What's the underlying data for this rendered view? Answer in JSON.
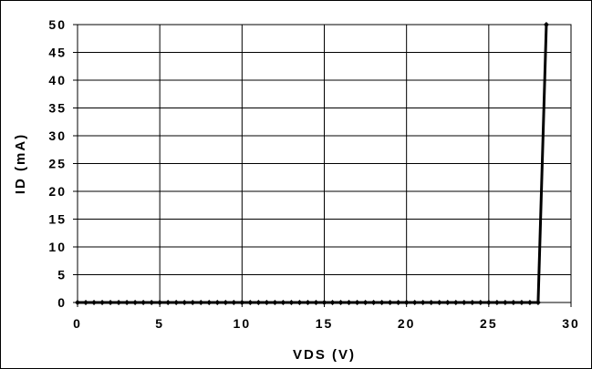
{
  "chart_data": {
    "type": "line",
    "title": "",
    "xlabel": "VDS (V)",
    "ylabel": "ID (mA)",
    "xlim": [
      0,
      30
    ],
    "ylim": [
      0,
      50
    ],
    "xticks": [
      0,
      5,
      10,
      15,
      20,
      25,
      30
    ],
    "yticks": [
      0,
      5,
      10,
      15,
      20,
      25,
      30,
      35,
      40,
      45,
      50
    ],
    "grid": true,
    "legend": "none",
    "line_color": "#000000",
    "marker": "diamond",
    "series": [
      {
        "x": [
          0,
          0.5,
          1,
          1.5,
          2,
          2.5,
          3,
          3.5,
          4,
          4.5,
          5,
          5.5,
          6,
          6.5,
          7,
          7.5,
          8,
          8.5,
          9,
          9.5,
          10,
          10.5,
          11,
          11.5,
          12,
          12.5,
          13,
          13.5,
          14,
          14.5,
          15,
          15.5,
          16,
          16.5,
          17,
          17.5,
          18,
          18.5,
          19,
          19.5,
          20,
          20.5,
          21,
          21.5,
          22,
          22.5,
          23,
          23.5,
          24,
          24.5,
          25,
          25.5,
          26,
          26.5,
          27,
          27.5,
          28,
          28.5
        ],
        "values": [
          0,
          0,
          0,
          0,
          0,
          0,
          0,
          0,
          0,
          0,
          0,
          0,
          0,
          0,
          0,
          0,
          0,
          0,
          0,
          0,
          0,
          0,
          0,
          0,
          0,
          0,
          0,
          0,
          0,
          0,
          0,
          0,
          0,
          0,
          0,
          0,
          0,
          0,
          0,
          0,
          0,
          0,
          0,
          0,
          0,
          0,
          0,
          0,
          0,
          0,
          0,
          0,
          0,
          0,
          0,
          0,
          0,
          50
        ]
      }
    ]
  }
}
